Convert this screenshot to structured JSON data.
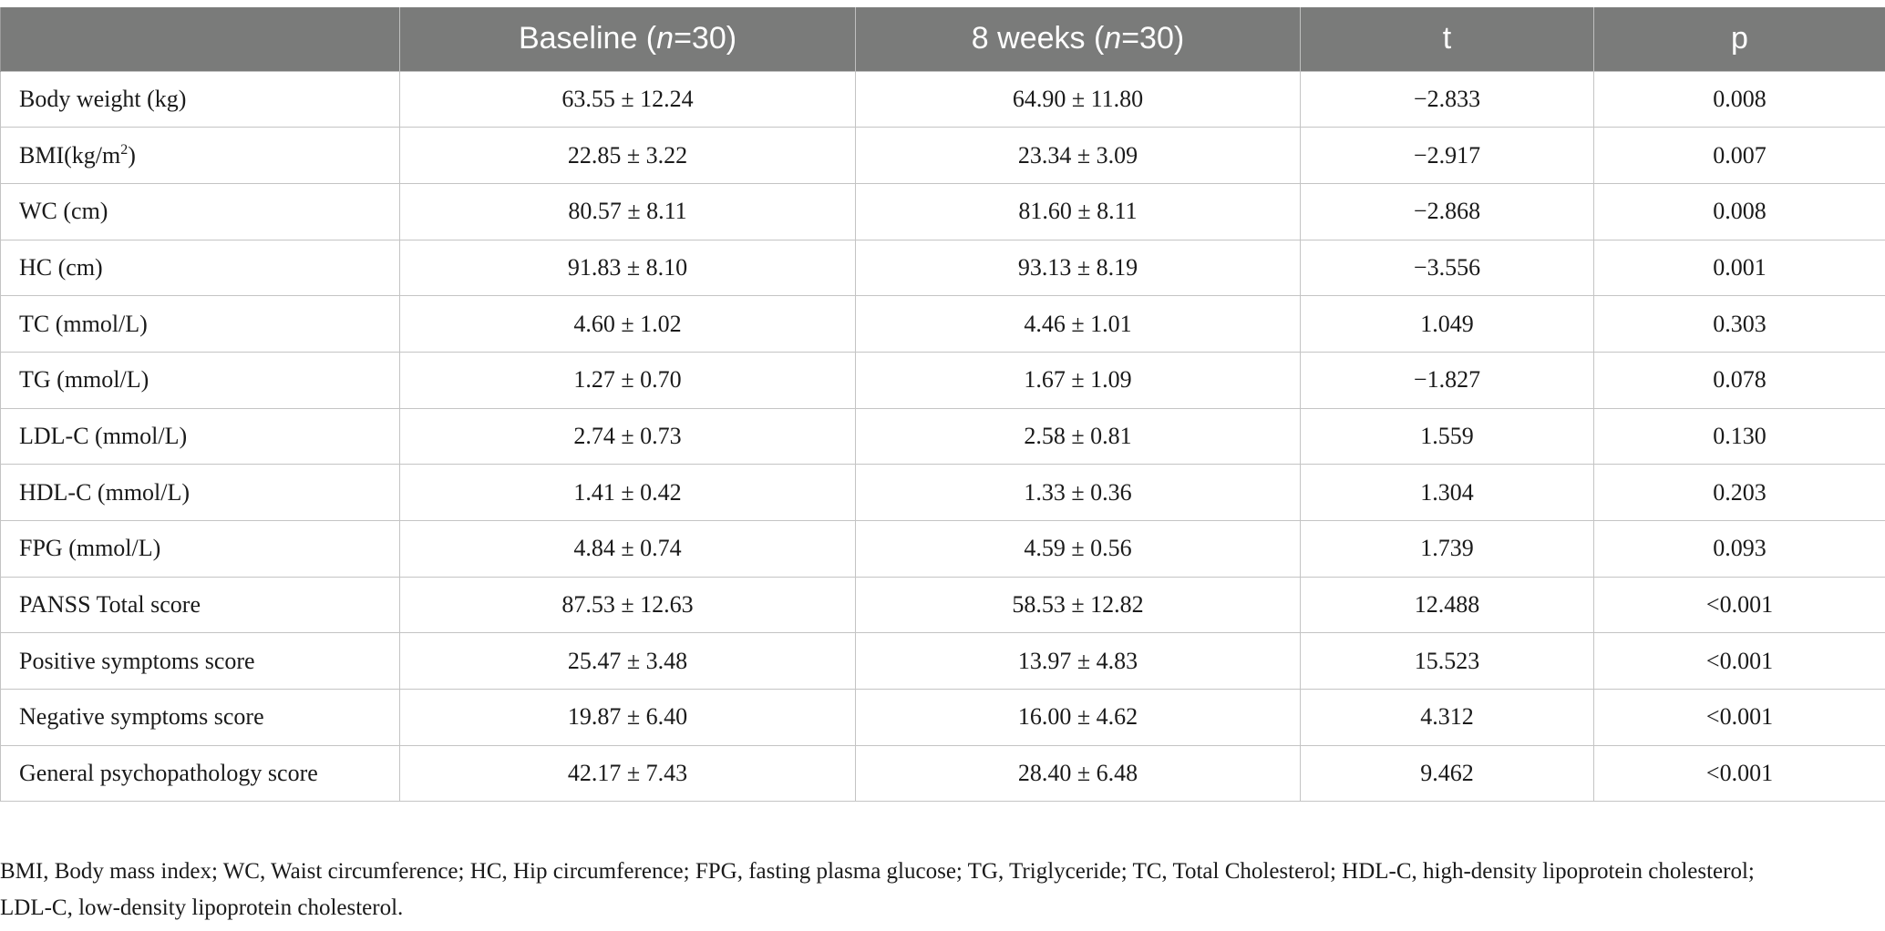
{
  "table": {
    "headers": {
      "variable": "",
      "baseline_prefix": "Baseline (",
      "baseline_n": "n",
      "baseline_suffix": "=30)",
      "week8_prefix": "8 weeks (",
      "week8_n": "n",
      "week8_suffix": "=30)",
      "t": "t",
      "p": "p"
    },
    "rows": [
      {
        "label": "Body weight (kg)",
        "baseline": "63.55 ± 12.24",
        "week8": "64.90 ± 11.80",
        "t": "−2.833",
        "p": "0.008"
      },
      {
        "label": "BMI(kg/m",
        "label_sup": "2",
        "label_after": ")",
        "baseline": "22.85 ± 3.22",
        "week8": "23.34 ± 3.09",
        "t": "−2.917",
        "p": "0.007"
      },
      {
        "label": "WC (cm)",
        "baseline": "80.57 ± 8.11",
        "week8": "81.60 ± 8.11",
        "t": "−2.868",
        "p": "0.008"
      },
      {
        "label": "HC (cm)",
        "baseline": "91.83 ± 8.10",
        "week8": "93.13 ± 8.19",
        "t": "−3.556",
        "p": "0.001"
      },
      {
        "label": "TC (mmol/L)",
        "baseline": "4.60 ± 1.02",
        "week8": "4.46 ± 1.01",
        "t": "1.049",
        "p": "0.303"
      },
      {
        "label": "TG (mmol/L)",
        "baseline": "1.27 ± 0.70",
        "week8": "1.67 ± 1.09",
        "t": "−1.827",
        "p": "0.078"
      },
      {
        "label": "LDL-C (mmol/L)",
        "baseline": "2.74 ± 0.73",
        "week8": "2.58 ± 0.81",
        "t": "1.559",
        "p": "0.130"
      },
      {
        "label": "HDL-C (mmol/L)",
        "baseline": "1.41 ± 0.42",
        "week8": "1.33 ± 0.36",
        "t": "1.304",
        "p": "0.203"
      },
      {
        "label": "FPG (mmol/L)",
        "baseline": "4.84 ± 0.74",
        "week8": "4.59 ± 0.56",
        "t": "1.739",
        "p": "0.093"
      },
      {
        "label": "PANSS Total score",
        "baseline": "87.53 ± 12.63",
        "week8": "58.53 ± 12.82",
        "t": "12.488",
        "p": "<0.001"
      },
      {
        "label": "Positive symptoms score",
        "baseline": "25.47 ± 3.48",
        "week8": "13.97 ± 4.83",
        "t": "15.523",
        "p": "<0.001"
      },
      {
        "label": "Negative symptoms score",
        "baseline": "19.87 ± 6.40",
        "week8": "16.00 ± 4.62",
        "t": "4.312",
        "p": "<0.001"
      },
      {
        "label": "General psychopathology score",
        "baseline": "42.17 ± 7.43",
        "week8": "28.40 ± 6.48",
        "t": "9.462",
        "p": "<0.001"
      }
    ]
  },
  "footnote": {
    "line1": "BMI, Body mass index; WC, Waist circumference; HC, Hip circumference; FPG, fasting plasma glucose; TG, Triglyceride; TC, Total Cholesterol; HDL-C, high-density lipoprotein cholesterol;",
    "line2": "LDL-C, low-density lipoprotein cholesterol."
  },
  "colors": {
    "header_bg": "#7a7b7a",
    "header_text": "#ffffff",
    "border": "#c4c4c4"
  }
}
